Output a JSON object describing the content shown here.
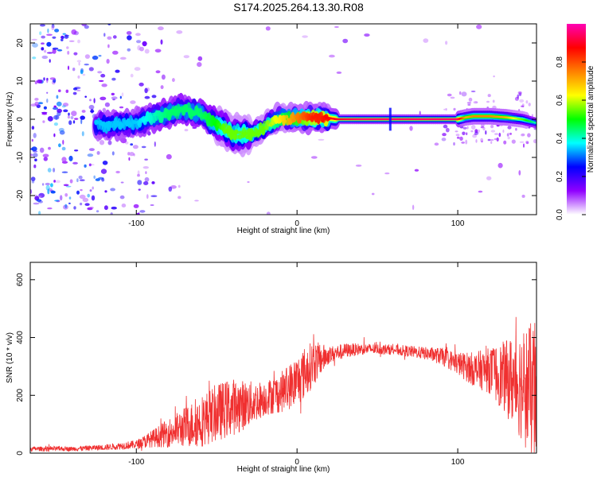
{
  "title": "S174.2025.264.13.30.R08",
  "chart_data": [
    {
      "type": "heatmap",
      "name": "doppler-spectrogram",
      "xlabel": "Height of straight line (km)",
      "ylabel": "Frequency (Hz)",
      "xlim": [
        -166,
        149
      ],
      "ylim": [
        -25,
        25
      ],
      "xticks": [
        -100,
        0,
        100
      ],
      "yticks": [
        -20,
        -10,
        0,
        10,
        20
      ],
      "colorbar": {
        "label": "Normalized spectral amplitude",
        "range": [
          0,
          1
        ],
        "ticks": [
          0.0,
          0.2,
          0.4,
          0.6,
          0.8
        ],
        "tick_labels": [
          "0.0",
          "0.2",
          "0.4",
          "0.6",
          "0.8"
        ],
        "colors": [
          "#ffffff",
          "#9000ff",
          "#0000ff",
          "#00ffff",
          "#00ff00",
          "#ffff00",
          "#ff8000",
          "#ff0000",
          "#ff00b4"
        ]
      },
      "ridge": {
        "x": [
          -120,
          -100,
          -90,
          -80,
          -70,
          -60,
          -50,
          -45,
          -40,
          -35,
          -30,
          -25,
          -20,
          -15,
          -10,
          -5,
          0,
          5,
          10,
          15,
          20,
          25,
          30,
          40,
          50,
          58,
          60,
          70,
          80,
          90,
          100,
          105,
          110,
          120,
          130,
          140,
          149
        ],
        "frequency": [
          -1.5,
          -1.0,
          0.5,
          1.5,
          2.5,
          1.5,
          -1.5,
          -2.5,
          -4.0,
          -4.0,
          -4.0,
          -3.5,
          -2.0,
          -0.5,
          0.2,
          0.0,
          0.0,
          0.3,
          0.5,
          0.5,
          0.3,
          0.0,
          0.0,
          0.0,
          0.0,
          0.0,
          0.0,
          0.0,
          0.0,
          0.0,
          0.0,
          0.5,
          0.8,
          0.8,
          0.5,
          0.0,
          -1.0
        ],
        "peak_amplitude": [
          0.35,
          0.35,
          0.4,
          0.45,
          0.45,
          0.45,
          0.5,
          0.55,
          0.55,
          0.55,
          0.55,
          0.55,
          0.55,
          0.6,
          0.65,
          0.7,
          0.75,
          0.8,
          0.85,
          0.85,
          0.88,
          0.9,
          0.92,
          0.95,
          0.95,
          0.95,
          0.95,
          0.95,
          0.95,
          0.95,
          0.95,
          0.7,
          0.75,
          0.75,
          0.7,
          0.55,
          0.4
        ]
      }
    },
    {
      "type": "line",
      "name": "snr",
      "xlabel": "Height of straight line (km)",
      "ylabel": "SNR (10 * v/v)",
      "xlim": [
        -166,
        149
      ],
      "ylim": [
        0,
        660
      ],
      "xticks": [
        -100,
        0,
        100
      ],
      "yticks": [
        0,
        200,
        400,
        600
      ],
      "color": "#f03030",
      "envelope": {
        "x": [
          -166,
          -140,
          -120,
          -100,
          -90,
          -80,
          -70,
          -60,
          -50,
          -40,
          -30,
          -20,
          -10,
          0,
          5,
          10,
          20,
          30,
          40,
          50,
          60,
          70,
          80,
          90,
          100,
          110,
          120,
          130,
          140,
          149
        ],
        "mean": [
          15,
          15,
          20,
          30,
          50,
          70,
          90,
          110,
          140,
          160,
          170,
          190,
          210,
          250,
          280,
          310,
          340,
          355,
          360,
          360,
          358,
          352,
          345,
          335,
          310,
          290,
          285,
          260,
          240,
          200
        ],
        "spread": [
          8,
          8,
          10,
          15,
          30,
          50,
          70,
          90,
          100,
          100,
          80,
          60,
          70,
          90,
          90,
          80,
          30,
          25,
          20,
          18,
          18,
          20,
          22,
          30,
          40,
          60,
          80,
          130,
          200,
          260
        ]
      }
    }
  ]
}
